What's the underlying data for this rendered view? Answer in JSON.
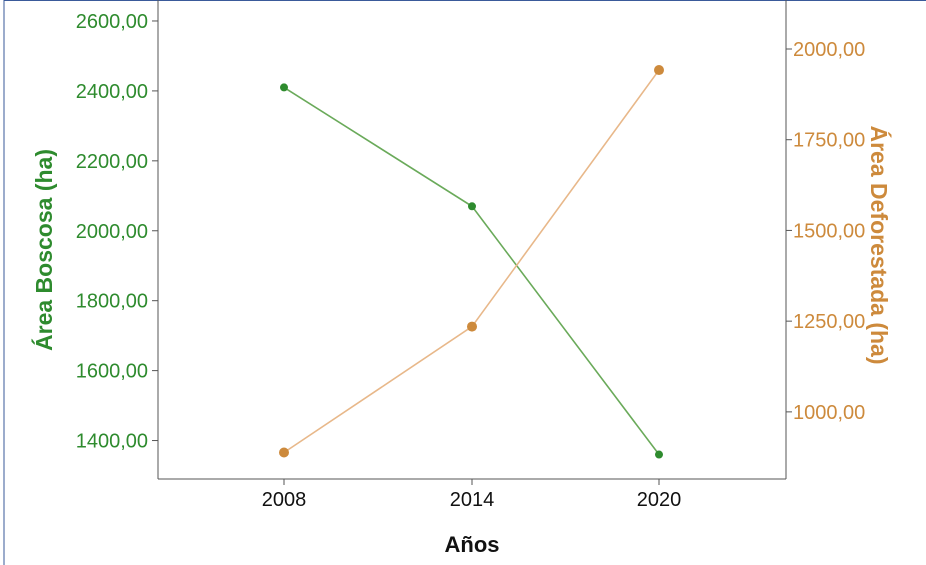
{
  "chart_data": {
    "type": "line",
    "categories": [
      "2008",
      "2014",
      "2020"
    ],
    "xlabel": "Años",
    "y_left": {
      "label": "Área Boscosa (ha)",
      "ticks": [
        "1400,00",
        "1600,00",
        "1800,00",
        "2000,00",
        "2200,00",
        "2400,00",
        "2600,00"
      ],
      "tick_values": [
        1400,
        1600,
        1800,
        2000,
        2200,
        2400,
        2600
      ],
      "ylim": [
        1290,
        2660
      ],
      "color": "#2e8b2e"
    },
    "y_right": {
      "label": "Área Deforestada (ha)",
      "ticks": [
        "1000,00",
        "1250,00",
        "1500,00",
        "1750,00",
        "2000,00"
      ],
      "tick_values": [
        1000,
        1250,
        1500,
        1750,
        2000
      ],
      "ylim": [
        815,
        2135
      ],
      "color": "#cd8a3c"
    },
    "series": [
      {
        "axis": "left",
        "values": [
          2410,
          2070,
          1360
        ],
        "line_color": "#6aaa5a",
        "marker_color": "#2e8b2e"
      },
      {
        "axis": "right",
        "values": [
          888,
          1235,
          1942
        ],
        "line_color": "#e8b88a",
        "marker_color": "#cd8a3c"
      }
    ],
    "grid": false,
    "legend": "none"
  }
}
